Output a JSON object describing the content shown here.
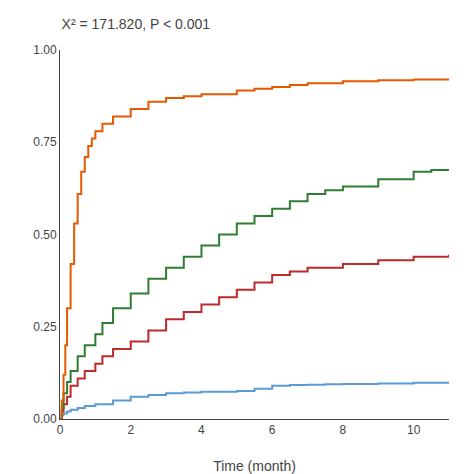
{
  "chart_data": {
    "type": "step",
    "title": "X² = 171.820, P < 0.001",
    "xlabel": "Time (month)",
    "xlim": [
      0,
      11
    ],
    "ylim": [
      0,
      1.0
    ],
    "xticks": [
      0,
      2,
      4,
      6,
      8,
      10
    ],
    "yticks": [
      {
        "value": 0.0,
        "label": "0.00"
      },
      {
        "value": 0.25,
        "label": "0.25"
      },
      {
        "value": 0.5,
        "label": "0.50"
      },
      {
        "value": 0.75,
        "label": "0.75"
      },
      {
        "value": 1.0,
        "label": "1.00"
      }
    ],
    "grid": false,
    "series": [
      {
        "color": "#5B9BD5",
        "x": [
          0,
          0.05,
          0.1,
          0.2,
          0.3,
          0.5,
          0.7,
          1.0,
          1.5,
          2.0,
          2.5,
          3.0,
          3.5,
          4.0,
          5.0,
          5.5,
          6.0,
          6.5,
          7.0,
          7.5,
          8.0,
          9.0,
          10.0,
          11.0
        ],
        "values": [
          0,
          0.01,
          0.015,
          0.02,
          0.025,
          0.03,
          0.035,
          0.04,
          0.05,
          0.06,
          0.065,
          0.07,
          0.072,
          0.074,
          0.076,
          0.082,
          0.09,
          0.092,
          0.093,
          0.094,
          0.095,
          0.096,
          0.098,
          0.098
        ]
      },
      {
        "color": "#BE2A2A",
        "x": [
          0,
          0.05,
          0.1,
          0.2,
          0.3,
          0.5,
          0.7,
          1.0,
          1.2,
          1.5,
          2.0,
          2.5,
          3.0,
          3.5,
          4.0,
          4.5,
          5.0,
          5.5,
          6.0,
          6.5,
          7.0,
          8.0,
          9.0,
          10.0,
          11.0
        ],
        "values": [
          0,
          0.02,
          0.04,
          0.06,
          0.09,
          0.11,
          0.13,
          0.15,
          0.17,
          0.19,
          0.21,
          0.24,
          0.27,
          0.29,
          0.31,
          0.33,
          0.35,
          0.37,
          0.39,
          0.4,
          0.41,
          0.42,
          0.43,
          0.44,
          0.445
        ]
      },
      {
        "color": "#2E7D32",
        "x": [
          0,
          0.05,
          0.1,
          0.2,
          0.3,
          0.5,
          0.7,
          1.0,
          1.2,
          1.5,
          2.0,
          2.5,
          3.0,
          3.5,
          4.0,
          4.5,
          5.0,
          5.5,
          6.0,
          6.5,
          7.0,
          7.5,
          8.0,
          9.0,
          10.0,
          10.5,
          11.0
        ],
        "values": [
          0,
          0.03,
          0.07,
          0.1,
          0.13,
          0.17,
          0.2,
          0.23,
          0.26,
          0.3,
          0.34,
          0.38,
          0.41,
          0.44,
          0.47,
          0.5,
          0.53,
          0.55,
          0.57,
          0.59,
          0.61,
          0.62,
          0.63,
          0.65,
          0.67,
          0.675,
          0.675
        ]
      },
      {
        "color": "#E55A00",
        "x": [
          0,
          0.05,
          0.1,
          0.15,
          0.2,
          0.3,
          0.4,
          0.5,
          0.6,
          0.7,
          0.8,
          0.9,
          1.0,
          1.2,
          1.5,
          2.0,
          2.5,
          3.0,
          3.5,
          4.0,
          5.0,
          5.5,
          6.0,
          6.5,
          7.0,
          8.0,
          9.0,
          10.0,
          11.0
        ],
        "values": [
          0,
          0.05,
          0.12,
          0.2,
          0.3,
          0.42,
          0.53,
          0.61,
          0.67,
          0.71,
          0.74,
          0.76,
          0.78,
          0.8,
          0.82,
          0.84,
          0.86,
          0.87,
          0.875,
          0.88,
          0.89,
          0.895,
          0.9,
          0.905,
          0.91,
          0.915,
          0.918,
          0.92,
          0.92
        ]
      }
    ]
  }
}
